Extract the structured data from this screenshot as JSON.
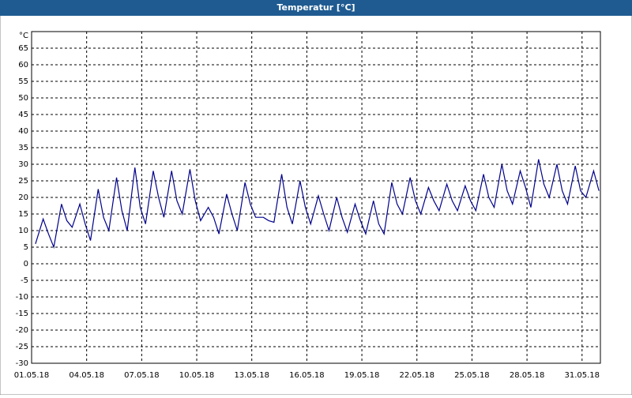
{
  "chart_data": {
    "type": "line",
    "title": "Temperatur [°C]",
    "unit_label": "°C",
    "xlim": [
      1,
      32
    ],
    "ylim": [
      -30,
      70
    ],
    "xticks": [
      {
        "value": 1,
        "label": "01.05.18"
      },
      {
        "value": 4,
        "label": "04.05.18"
      },
      {
        "value": 7,
        "label": "07.05.18"
      },
      {
        "value": 10,
        "label": "10.05.18"
      },
      {
        "value": 13,
        "label": "13.05.18"
      },
      {
        "value": 16,
        "label": "16.05.18"
      },
      {
        "value": 19,
        "label": "19.05.18"
      },
      {
        "value": 22,
        "label": "22.05.18"
      },
      {
        "value": 25,
        "label": "25.05.18"
      },
      {
        "value": 28,
        "label": "28.05.18"
      },
      {
        "value": 31,
        "label": "31.05.18"
      }
    ],
    "yticks": [
      -30,
      -25,
      -20,
      -15,
      -10,
      -5,
      0,
      5,
      10,
      15,
      20,
      25,
      30,
      35,
      40,
      45,
      50,
      55,
      60,
      65
    ],
    "grid": true,
    "x": [
      1.21,
      1.63,
      1.92,
      2.21,
      2.63,
      2.92,
      3.21,
      3.63,
      3.92,
      4.21,
      4.63,
      4.92,
      5.21,
      5.63,
      5.92,
      6.21,
      6.63,
      6.92,
      7.21,
      7.63,
      7.92,
      8.21,
      8.63,
      8.92,
      9.21,
      9.63,
      9.92,
      10.21,
      10.63,
      10.92,
      11.21,
      11.63,
      11.92,
      12.21,
      12.63,
      12.92,
      13.21,
      13.63,
      13.92,
      14.21,
      14.63,
      14.92,
      15.21,
      15.63,
      15.92,
      16.21,
      16.63,
      16.92,
      17.21,
      17.63,
      17.92,
      18.21,
      18.63,
      18.92,
      19.21,
      19.63,
      19.92,
      20.21,
      20.63,
      20.92,
      21.21,
      21.63,
      21.92,
      22.21,
      22.63,
      22.92,
      23.21,
      23.63,
      23.92,
      24.21,
      24.63,
      24.92,
      25.21,
      25.63,
      25.92,
      26.21,
      26.63,
      26.92,
      27.21,
      27.63,
      27.92,
      28.21,
      28.63,
      28.92,
      29.21,
      29.63,
      29.92,
      30.21,
      30.63,
      30.92,
      31.21,
      31.63,
      31.92
    ],
    "series": [
      {
        "name": "Temperatur",
        "color": "#00008b",
        "values": [
          6,
          13.5,
          9,
          5,
          18,
          13,
          11,
          18,
          12,
          7,
          22.5,
          14,
          10,
          26,
          16,
          10,
          29,
          17,
          12,
          28,
          20,
          14,
          28,
          19,
          15,
          28.5,
          19,
          13,
          17,
          14,
          9,
          21,
          15,
          10,
          24.5,
          18,
          14,
          14,
          13,
          12.5,
          27,
          17,
          12,
          25,
          17,
          12,
          20.5,
          15,
          10,
          20,
          14,
          9.5,
          18,
          13,
          9,
          19,
          12,
          9,
          24.5,
          18,
          15,
          26,
          19,
          15,
          23,
          19,
          16,
          24,
          19,
          16,
          23.5,
          19,
          16,
          27,
          20,
          17,
          30,
          22,
          18,
          28,
          23,
          17,
          31.5,
          24,
          20,
          30,
          22,
          18,
          29.5,
          22,
          20,
          28,
          22
        ]
      }
    ]
  }
}
